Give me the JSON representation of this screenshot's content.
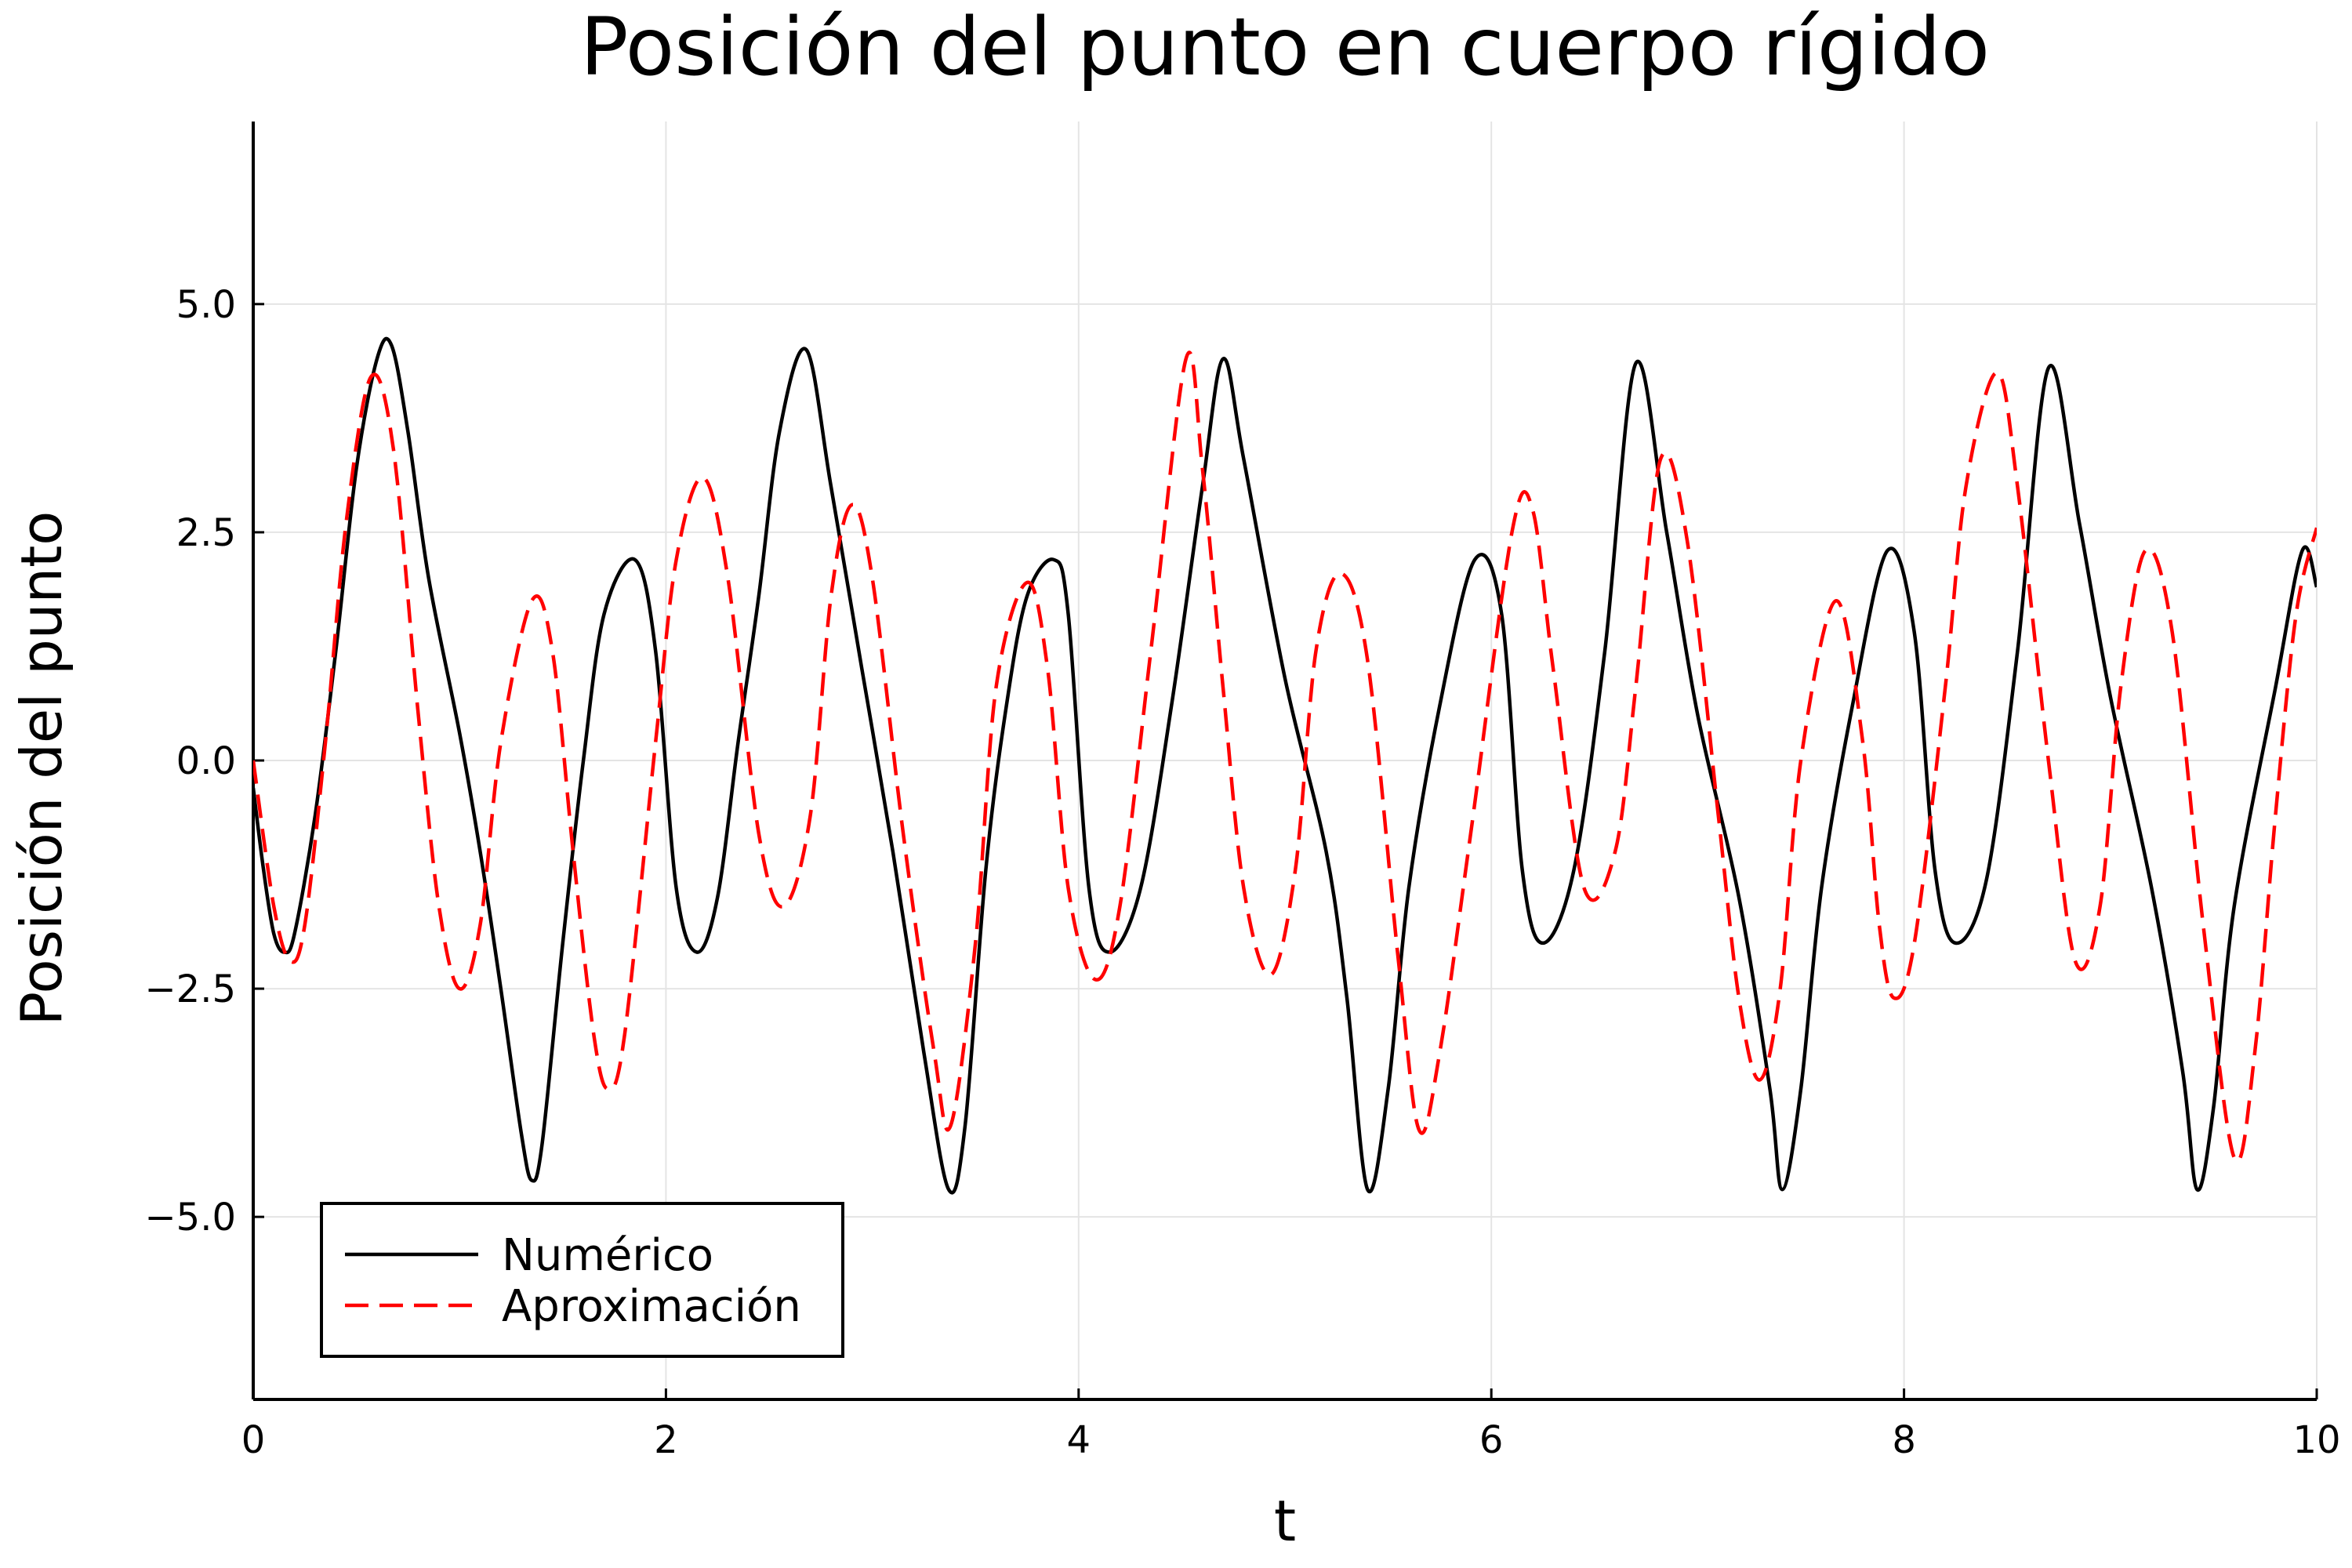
{
  "chart_data": {
    "type": "line",
    "title": "Posición del punto en cuerpo rígido",
    "xlabel": "t",
    "ylabel": "Posición del punto",
    "xlim": [
      0,
      10
    ],
    "ylim": [
      -7,
      7
    ],
    "xticks": [
      0,
      2,
      4,
      6,
      8,
      10
    ],
    "xtick_labels": [
      "0",
      "2",
      "4",
      "6",
      "8",
      "10"
    ],
    "yticks": [
      -5,
      -2.5,
      0,
      2.5,
      5
    ],
    "ytick_labels": [
      "−5.0",
      "−2.5",
      "0.0",
      "2.5",
      "5.0"
    ],
    "grid": true,
    "legend_position": "bottom-left",
    "series": [
      {
        "name": "Numérico",
        "color": "#000000",
        "style": "solid",
        "x": [
          0,
          0.05,
          0.1,
          0.15,
          0.2,
          0.3,
          0.4,
          0.5,
          0.6,
          0.67,
          0.75,
          0.85,
          1.0,
          1.1,
          1.2,
          1.3,
          1.35,
          1.4,
          1.5,
          1.6,
          1.7,
          1.85,
          1.95,
          2.05,
          2.15,
          2.25,
          2.35,
          2.45,
          2.55,
          2.68,
          2.8,
          2.95,
          3.1,
          3.25,
          3.37,
          3.45,
          3.55,
          3.65,
          3.75,
          3.88,
          3.95,
          4.05,
          4.15,
          4.3,
          4.45,
          4.6,
          4.7,
          4.8,
          5.0,
          5.2,
          5.3,
          5.4,
          5.5,
          5.6,
          5.75,
          5.92,
          6.05,
          6.15,
          6.25,
          6.4,
          6.55,
          6.7,
          6.85,
          7.0,
          7.2,
          7.35,
          7.41,
          7.5,
          7.6,
          7.75,
          7.92,
          8.05,
          8.15,
          8.25,
          8.4,
          8.55,
          8.7,
          8.85,
          9.0,
          9.2,
          9.35,
          9.42,
          9.5,
          9.6,
          9.8,
          9.93,
          10.0
        ],
        "y": [
          -0.3,
          -1.2,
          -1.9,
          -2.1,
          -1.9,
          -0.6,
          1.2,
          3.2,
          4.4,
          4.55,
          3.6,
          2.0,
          0.3,
          -1.0,
          -2.5,
          -4.1,
          -4.6,
          -4.2,
          -2.0,
          0.0,
          1.6,
          2.2,
          1.2,
          -1.4,
          -2.1,
          -1.5,
          0.2,
          1.8,
          3.6,
          4.5,
          3.0,
          1.0,
          -1.0,
          -3.2,
          -4.7,
          -4.0,
          -1.2,
          0.6,
          1.8,
          2.2,
          1.6,
          -1.4,
          -2.1,
          -1.4,
          0.6,
          3.0,
          4.4,
          3.3,
          0.9,
          -1.0,
          -2.6,
          -4.7,
          -3.6,
          -1.4,
          0.6,
          2.2,
          1.6,
          -1.2,
          -2.0,
          -1.2,
          1.2,
          4.35,
          2.5,
          0.5,
          -1.5,
          -3.6,
          -4.7,
          -3.6,
          -1.4,
          0.6,
          2.3,
          1.4,
          -1.2,
          -2.0,
          -1.3,
          1.2,
          4.3,
          2.6,
          0.7,
          -1.4,
          -3.4,
          -4.7,
          -3.8,
          -1.6,
          0.8,
          2.3,
          1.9
        ]
      },
      {
        "name": "Aproximación",
        "color": "#ff0000",
        "style": "dashed",
        "x": [
          0,
          0.1,
          0.18,
          0.25,
          0.35,
          0.45,
          0.57,
          0.68,
          0.8,
          0.9,
          1.0,
          1.1,
          1.2,
          1.35,
          1.45,
          1.55,
          1.65,
          1.72,
          1.8,
          1.95,
          2.05,
          2.18,
          2.3,
          2.45,
          2.57,
          2.7,
          2.8,
          2.9,
          3.0,
          3.15,
          3.3,
          3.38,
          3.5,
          3.6,
          3.75,
          3.85,
          3.95,
          4.08,
          4.2,
          4.35,
          4.52,
          4.6,
          4.7,
          4.8,
          4.93,
          5.05,
          5.15,
          5.27,
          5.4,
          5.55,
          5.65,
          5.75,
          5.9,
          6.1,
          6.2,
          6.3,
          6.45,
          6.6,
          6.7,
          6.82,
          6.95,
          7.1,
          7.2,
          7.3,
          7.4,
          7.5,
          7.67,
          7.8,
          7.88,
          7.95,
          8.05,
          8.2,
          8.3,
          8.45,
          8.55,
          8.7,
          8.83,
          8.95,
          9.05,
          9.17,
          9.3,
          9.45,
          9.6,
          9.7,
          9.8,
          9.9,
          10.0
        ],
        "y": [
          0.0,
          -1.6,
          -2.2,
          -1.8,
          0.2,
          2.6,
          4.2,
          3.4,
          0.5,
          -1.6,
          -2.5,
          -1.8,
          0.2,
          1.75,
          1.2,
          -1.0,
          -3.0,
          -3.6,
          -3.0,
          0.2,
          2.2,
          3.1,
          2.0,
          -0.8,
          -1.6,
          -0.6,
          1.8,
          2.8,
          2.0,
          -0.8,
          -3.2,
          -4.0,
          -2.0,
          0.8,
          1.95,
          1.0,
          -1.4,
          -2.4,
          -1.6,
          1.2,
          4.4,
          3.2,
          0.8,
          -1.4,
          -2.35,
          -1.2,
          1.2,
          2.05,
          1.1,
          -2.2,
          -4.05,
          -3.2,
          -0.8,
          2.5,
          2.75,
          1.0,
          -1.4,
          -1.0,
          0.8,
          3.3,
          2.4,
          -0.6,
          -2.6,
          -3.5,
          -2.5,
          0.0,
          1.75,
          0.2,
          -1.8,
          -2.6,
          -2.0,
          0.8,
          3.0,
          4.25,
          3.0,
          0.0,
          -2.2,
          -1.6,
          0.8,
          2.3,
          1.4,
          -1.8,
          -4.35,
          -3.2,
          -0.6,
          1.6,
          2.55
        ]
      }
    ]
  }
}
